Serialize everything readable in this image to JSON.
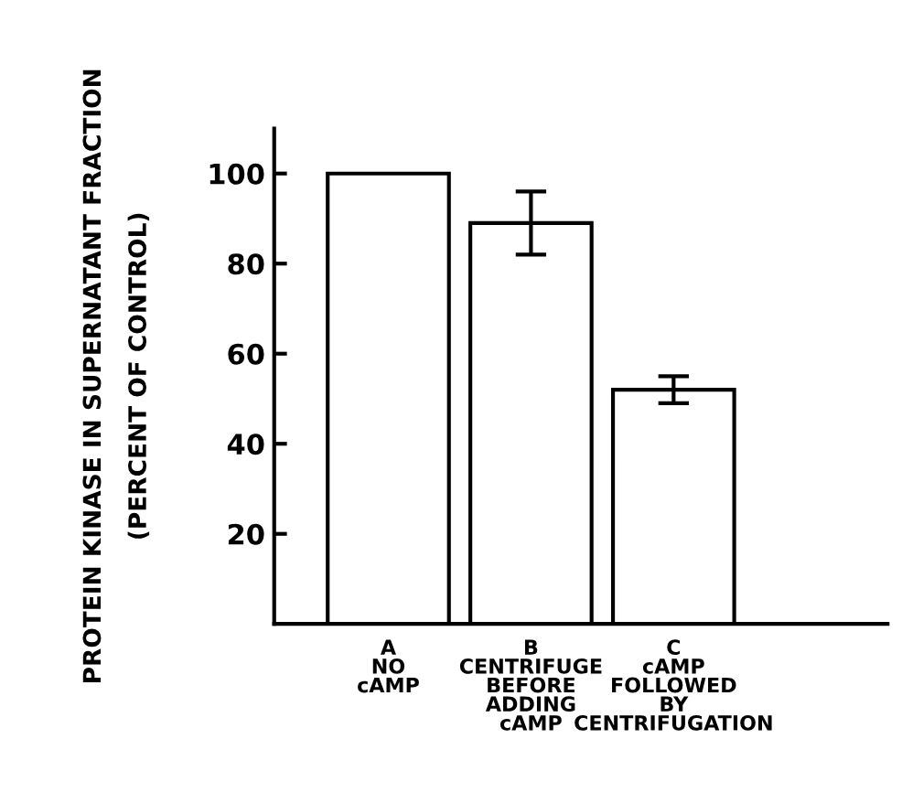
{
  "chart_data": {
    "type": "bar",
    "ylabel": "PROTEIN KINASE IN SUPERNATANT FRACTION\n(PERCENT OF CONTROL)",
    "categories": [
      "A\nNO\ncAMP",
      "B\nCENTRIFUGE\nBEFORE\nADDING\ncAMP",
      "C\ncAMP\nFOLLOWED\nBY\nCENTRIFUGATION"
    ],
    "values": [
      100,
      89,
      52
    ],
    "errors": [
      null,
      7,
      3
    ],
    "color": "#ffffff",
    "ylim": [
      0,
      110
    ],
    "yticks": [
      20,
      40,
      60,
      80,
      100
    ],
    "grid": false
  }
}
